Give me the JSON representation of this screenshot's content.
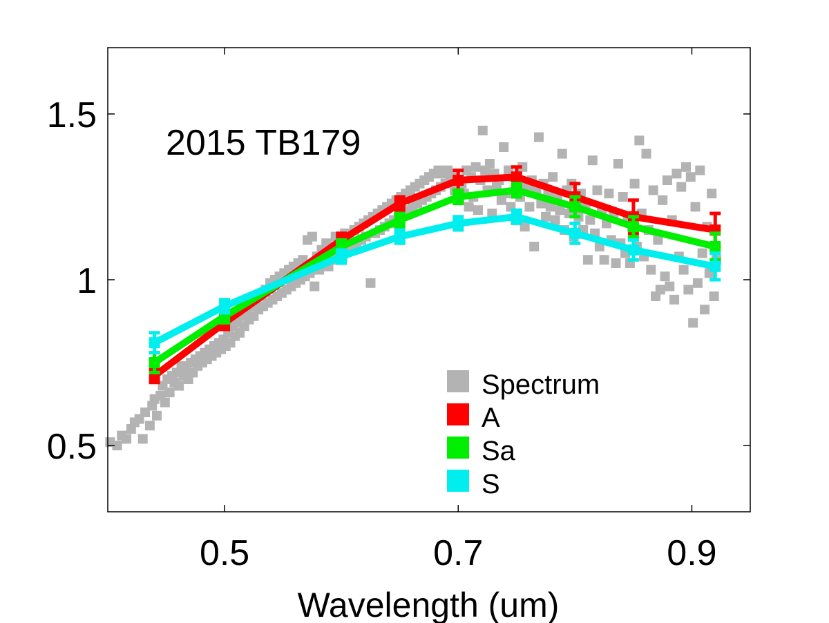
{
  "chart_data": {
    "type": "line",
    "annotation": "2015 TB179",
    "xlabel": "Wavelength (um)",
    "ylabel": "",
    "xlim": [
      0.4,
      0.95
    ],
    "ylim": [
      0.3,
      1.7
    ],
    "xticks": [
      {
        "value": 0.5,
        "label": "0.5"
      },
      {
        "value": 0.7,
        "label": "0.7"
      },
      {
        "value": 0.9,
        "label": "0.9"
      }
    ],
    "yticks": [
      {
        "value": 0.5,
        "label": "0.5"
      },
      {
        "value": 1.0,
        "label": "1"
      },
      {
        "value": 1.5,
        "label": "1.5"
      }
    ],
    "legend": {
      "placement": "bottom-right",
      "entries": [
        {
          "label": "Spectrum",
          "color": "#b3b3b3"
        },
        {
          "label": "A",
          "color": "#ff0000"
        },
        {
          "label": "Sa",
          "color": "#00ee00"
        },
        {
          "label": "S",
          "color": "#00eeee"
        }
      ]
    },
    "spectrum": {
      "name": "Spectrum",
      "color": "#b3b3b3",
      "points": [
        [
          0.402,
          0.51
        ],
        [
          0.408,
          0.5
        ],
        [
          0.412,
          0.53
        ],
        [
          0.416,
          0.52
        ],
        [
          0.42,
          0.55
        ],
        [
          0.423,
          0.57
        ],
        [
          0.427,
          0.58
        ],
        [
          0.43,
          0.52
        ],
        [
          0.432,
          0.6
        ],
        [
          0.436,
          0.56
        ],
        [
          0.438,
          0.62
        ],
        [
          0.44,
          0.64
        ],
        [
          0.442,
          0.59
        ],
        [
          0.445,
          0.65
        ],
        [
          0.447,
          0.68
        ],
        [
          0.449,
          0.63
        ],
        [
          0.451,
          0.7
        ],
        [
          0.453,
          0.66
        ],
        [
          0.455,
          0.71
        ],
        [
          0.457,
          0.69
        ],
        [
          0.459,
          0.72
        ],
        [
          0.461,
          0.68
        ],
        [
          0.463,
          0.74
        ],
        [
          0.465,
          0.71
        ],
        [
          0.467,
          0.73
        ],
        [
          0.469,
          0.7
        ],
        [
          0.471,
          0.75
        ],
        [
          0.473,
          0.72
        ],
        [
          0.475,
          0.76
        ],
        [
          0.477,
          0.74
        ],
        [
          0.479,
          0.77
        ],
        [
          0.481,
          0.75
        ],
        [
          0.483,
          0.78
        ],
        [
          0.485,
          0.76
        ],
        [
          0.487,
          0.79
        ],
        [
          0.489,
          0.77
        ],
        [
          0.491,
          0.8
        ],
        [
          0.493,
          0.78
        ],
        [
          0.495,
          0.81
        ],
        [
          0.497,
          0.79
        ],
        [
          0.499,
          0.82
        ],
        [
          0.501,
          0.8
        ],
        [
          0.503,
          0.84
        ],
        [
          0.505,
          0.81
        ],
        [
          0.507,
          0.86
        ],
        [
          0.509,
          0.83
        ],
        [
          0.511,
          0.87
        ],
        [
          0.513,
          0.84
        ],
        [
          0.515,
          0.89
        ],
        [
          0.517,
          0.86
        ],
        [
          0.519,
          0.9
        ],
        [
          0.521,
          0.88
        ],
        [
          0.523,
          0.92
        ],
        [
          0.525,
          0.89
        ],
        [
          0.527,
          0.93
        ],
        [
          0.529,
          0.91
        ],
        [
          0.531,
          0.95
        ],
        [
          0.533,
          0.92
        ],
        [
          0.535,
          0.97
        ],
        [
          0.537,
          0.93
        ],
        [
          0.539,
          0.99
        ],
        [
          0.541,
          0.94
        ],
        [
          0.543,
          1.0
        ],
        [
          0.545,
          0.95
        ],
        [
          0.547,
          1.01
        ],
        [
          0.549,
          0.96
        ],
        [
          0.551,
          1.02
        ],
        [
          0.553,
          0.97
        ],
        [
          0.555,
          1.03
        ],
        [
          0.557,
          0.98
        ],
        [
          0.559,
          1.04
        ],
        [
          0.561,
          0.99
        ],
        [
          0.563,
          1.05
        ],
        [
          0.565,
          1.0
        ],
        [
          0.567,
          1.06
        ],
        [
          0.569,
          1.01
        ],
        [
          0.571,
          1.12
        ],
        [
          0.573,
          1.02
        ],
        [
          0.575,
          1.13
        ],
        [
          0.577,
          0.98
        ],
        [
          0.579,
          1.07
        ],
        [
          0.581,
          1.03
        ],
        [
          0.583,
          1.09
        ],
        [
          0.585,
          1.05
        ],
        [
          0.587,
          1.11
        ],
        [
          0.589,
          1.04
        ],
        [
          0.591,
          1.1
        ],
        [
          0.593,
          1.06
        ],
        [
          0.595,
          1.13
        ],
        [
          0.597,
          1.08
        ],
        [
          0.599,
          1.12
        ],
        [
          0.601,
          1.07
        ],
        [
          0.603,
          1.14
        ],
        [
          0.605,
          1.09
        ],
        [
          0.607,
          1.13
        ],
        [
          0.609,
          1.1
        ],
        [
          0.611,
          1.15
        ],
        [
          0.613,
          1.11
        ],
        [
          0.615,
          1.16
        ],
        [
          0.617,
          1.12
        ],
        [
          0.619,
          1.17
        ],
        [
          0.621,
          1.13
        ],
        [
          0.623,
          1.18
        ],
        [
          0.625,
          0.99
        ],
        [
          0.627,
          1.19
        ],
        [
          0.629,
          1.14
        ],
        [
          0.631,
          1.2
        ],
        [
          0.633,
          1.15
        ],
        [
          0.635,
          1.21
        ],
        [
          0.637,
          1.16
        ],
        [
          0.639,
          1.22
        ],
        [
          0.641,
          1.17
        ],
        [
          0.643,
          1.23
        ],
        [
          0.645,
          1.18
        ],
        [
          0.647,
          1.24
        ],
        [
          0.649,
          1.19
        ],
        [
          0.651,
          1.25
        ],
        [
          0.653,
          1.2
        ],
        [
          0.655,
          1.26
        ],
        [
          0.657,
          1.21
        ],
        [
          0.659,
          1.27
        ],
        [
          0.661,
          1.22
        ],
        [
          0.663,
          1.28
        ],
        [
          0.665,
          1.23
        ],
        [
          0.667,
          1.29
        ],
        [
          0.669,
          1.24
        ],
        [
          0.671,
          1.3
        ],
        [
          0.673,
          1.25
        ],
        [
          0.675,
          1.31
        ],
        [
          0.677,
          1.26
        ],
        [
          0.679,
          1.32
        ],
        [
          0.681,
          1.27
        ],
        [
          0.683,
          1.33
        ],
        [
          0.685,
          1.28
        ],
        [
          0.687,
          1.32
        ],
        [
          0.689,
          1.29
        ],
        [
          0.691,
          1.33
        ],
        [
          0.693,
          1.3
        ],
        [
          0.695,
          1.31
        ],
        [
          0.697,
          1.27
        ],
        [
          0.699,
          1.3
        ],
        [
          0.701,
          1.24
        ],
        [
          0.703,
          1.29
        ],
        [
          0.705,
          1.26
        ],
        [
          0.707,
          1.33
        ],
        [
          0.709,
          1.22
        ],
        [
          0.711,
          1.31
        ],
        [
          0.713,
          1.25
        ],
        [
          0.715,
          1.34
        ],
        [
          0.717,
          1.21
        ],
        [
          0.719,
          1.3
        ],
        [
          0.721,
          1.45
        ],
        [
          0.723,
          1.33
        ],
        [
          0.725,
          1.27
        ],
        [
          0.727,
          1.35
        ],
        [
          0.729,
          1.2
        ],
        [
          0.731,
          1.32
        ],
        [
          0.733,
          1.28
        ],
        [
          0.735,
          1.3
        ],
        [
          0.737,
          1.24
        ],
        [
          0.739,
          1.4
        ],
        [
          0.741,
          1.26
        ],
        [
          0.743,
          1.33
        ],
        [
          0.745,
          1.22
        ],
        [
          0.747,
          1.31
        ],
        [
          0.749,
          1.18
        ],
        [
          0.751,
          1.29
        ],
        [
          0.753,
          1.25
        ],
        [
          0.755,
          1.34
        ],
        [
          0.757,
          1.16
        ],
        [
          0.759,
          1.28
        ],
        [
          0.761,
          1.22
        ],
        [
          0.763,
          1.3
        ],
        [
          0.765,
          1.1
        ],
        [
          0.767,
          1.27
        ],
        [
          0.769,
          1.43
        ],
        [
          0.771,
          1.23
        ],
        [
          0.773,
          1.29
        ],
        [
          0.775,
          1.19
        ],
        [
          0.777,
          1.26
        ],
        [
          0.779,
          1.22
        ],
        [
          0.781,
          1.31
        ],
        [
          0.783,
          1.18
        ],
        [
          0.785,
          1.25
        ],
        [
          0.787,
          1.21
        ],
        [
          0.789,
          1.38
        ],
        [
          0.791,
          1.15
        ],
        [
          0.793,
          1.27
        ],
        [
          0.795,
          1.2
        ],
        [
          0.797,
          1.29
        ],
        [
          0.799,
          1.13
        ],
        [
          0.801,
          1.24
        ],
        [
          0.803,
          1.19
        ],
        [
          0.805,
          1.26
        ],
        [
          0.807,
          1.15
        ],
        [
          0.809,
          1.22
        ],
        [
          0.811,
          1.06
        ],
        [
          0.813,
          1.18
        ],
        [
          0.815,
          1.36
        ],
        [
          0.817,
          1.14
        ],
        [
          0.819,
          1.27
        ],
        [
          0.821,
          1.1
        ],
        [
          0.823,
          1.21
        ],
        [
          0.825,
          1.06
        ],
        [
          0.827,
          1.17
        ],
        [
          0.829,
          1.26
        ],
        [
          0.831,
          1.12
        ],
        [
          0.833,
          1.2
        ],
        [
          0.835,
          1.05
        ],
        [
          0.837,
          1.35
        ],
        [
          0.839,
          1.11
        ],
        [
          0.841,
          1.25
        ],
        [
          0.843,
          1.08
        ],
        [
          0.845,
          1.19
        ],
        [
          0.847,
          1.05
        ],
        [
          0.849,
          1.16
        ],
        [
          0.851,
          1.29
        ],
        [
          0.853,
          1.1
        ],
        [
          0.855,
          1.42
        ],
        [
          0.857,
          1.2
        ],
        [
          0.859,
          1.07
        ],
        [
          0.861,
          1.38
        ],
        [
          0.863,
          1.15
        ],
        [
          0.865,
          1.03
        ],
        [
          0.867,
          1.27
        ],
        [
          0.869,
          0.95
        ],
        [
          0.871,
          1.12
        ],
        [
          0.873,
          0.97
        ],
        [
          0.875,
          1.24
        ],
        [
          0.877,
          1.01
        ],
        [
          0.879,
          1.3
        ],
        [
          0.881,
          0.98
        ],
        [
          0.883,
          1.18
        ],
        [
          0.885,
          0.94
        ],
        [
          0.887,
          1.32
        ],
        [
          0.889,
          1.07
        ],
        [
          0.891,
          1.28
        ],
        [
          0.893,
          1.03
        ],
        [
          0.895,
          1.34
        ],
        [
          0.897,
          0.97
        ],
        [
          0.899,
          1.31
        ],
        [
          0.901,
          0.87
        ],
        [
          0.903,
          1.22
        ],
        [
          0.905,
          0.99
        ],
        [
          0.907,
          1.33
        ],
        [
          0.909,
          1.08
        ],
        [
          0.911,
          0.91
        ],
        [
          0.913,
          1.16
        ],
        [
          0.915,
          1.02
        ],
        [
          0.917,
          1.26
        ],
        [
          0.919,
          0.95
        ],
        [
          0.921,
          1.06
        ]
      ]
    },
    "series": [
      {
        "name": "A",
        "color": "#ff0000",
        "x": [
          0.44,
          0.5,
          0.6,
          0.65,
          0.7,
          0.75,
          0.8,
          0.85,
          0.92
        ],
        "y": [
          0.71,
          0.87,
          1.12,
          1.23,
          1.3,
          1.31,
          1.25,
          1.19,
          1.15
        ],
        "err": [
          0.02,
          0.02,
          0.02,
          0.02,
          0.03,
          0.03,
          0.04,
          0.05,
          0.05
        ]
      },
      {
        "name": "Sa",
        "color": "#00ee00",
        "x": [
          0.44,
          0.5,
          0.6,
          0.65,
          0.7,
          0.75,
          0.8,
          0.85,
          0.92
        ],
        "y": [
          0.75,
          0.89,
          1.1,
          1.18,
          1.25,
          1.27,
          1.22,
          1.16,
          1.1
        ],
        "err": [
          0.03,
          0.02,
          0.02,
          0.02,
          0.02,
          0.02,
          0.03,
          0.03,
          0.04
        ]
      },
      {
        "name": "S",
        "color": "#00eeee",
        "x": [
          0.44,
          0.5,
          0.6,
          0.65,
          0.7,
          0.75,
          0.8,
          0.85,
          0.92
        ],
        "y": [
          0.81,
          0.92,
          1.07,
          1.13,
          1.17,
          1.19,
          1.14,
          1.09,
          1.04
        ],
        "err": [
          0.03,
          0.02,
          0.02,
          0.02,
          0.02,
          0.02,
          0.03,
          0.03,
          0.04
        ]
      }
    ]
  }
}
